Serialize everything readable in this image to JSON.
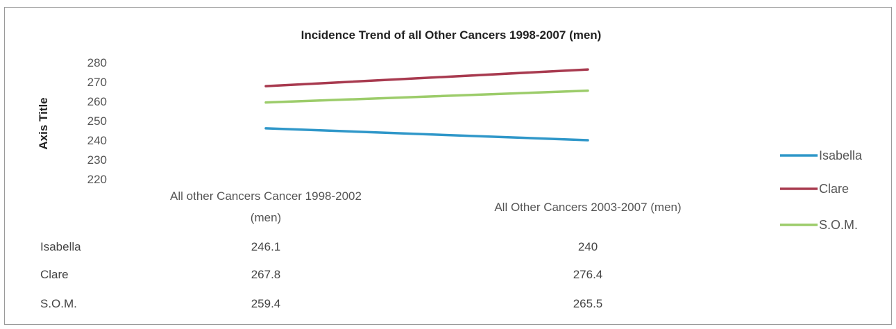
{
  "chart_data": {
    "type": "line",
    "title": "Incidence Trend of all Other Cancers 1998-2007 (men)",
    "ylabel": "Axis Title",
    "xlabel": "",
    "ylim": [
      220,
      280
    ],
    "yticks": [
      280,
      270,
      260,
      250,
      240,
      230,
      220
    ],
    "categories": [
      [
        "All other Cancers Cancer 1998-2002",
        "(men)"
      ],
      [
        "All Other Cancers 2003-2007 (men)"
      ]
    ],
    "series": [
      {
        "name": "Isabella",
        "values": [
          246.1,
          240
        ],
        "value_labels": [
          "246.1",
          "240"
        ],
        "color": "#2f97c9"
      },
      {
        "name": "Clare",
        "values": [
          267.8,
          276.4
        ],
        "value_labels": [
          "267.8",
          "276.4"
        ],
        "color": "#a83a4f"
      },
      {
        "name": "S.O.M.",
        "values": [
          259.4,
          265.5
        ],
        "value_labels": [
          "259.4",
          "265.5"
        ],
        "color": "#9ccc6a"
      }
    ],
    "grid": false,
    "legend": "right",
    "data_table": true
  }
}
